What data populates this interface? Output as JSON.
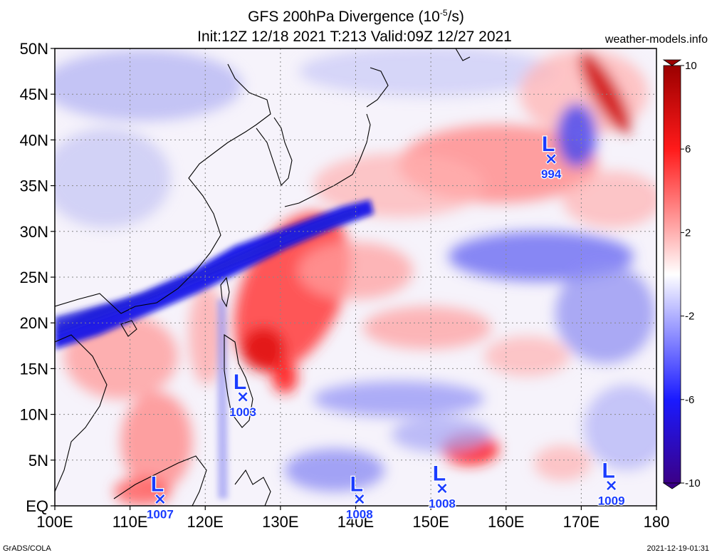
{
  "header": {
    "title_main": "GFS 200hPa Divergence (10",
    "title_exp": "-5",
    "title_unit": "/s)",
    "subtitle": "Init:12Z 12/18 2021 T:213 Valid:09Z 12/27 2021",
    "site": "weather-models.info"
  },
  "map": {
    "lon_range": [
      100,
      180
    ],
    "lat_range": [
      0,
      50
    ],
    "lat_labels": [
      {
        "lat": 50,
        "text": "50N"
      },
      {
        "lat": 45,
        "text": "45N"
      },
      {
        "lat": 40,
        "text": "40N"
      },
      {
        "lat": 35,
        "text": "35N"
      },
      {
        "lat": 30,
        "text": "30N"
      },
      {
        "lat": 25,
        "text": "25N"
      },
      {
        "lat": 20,
        "text": "20N"
      },
      {
        "lat": 15,
        "text": "15N"
      },
      {
        "lat": 10,
        "text": "10N"
      },
      {
        "lat": 5,
        "text": "5N"
      },
      {
        "lat": 0,
        "text": "EQ"
      }
    ],
    "lon_labels": [
      {
        "lon": 100,
        "text": "100E"
      },
      {
        "lon": 110,
        "text": "110E"
      },
      {
        "lon": 120,
        "text": "120E"
      },
      {
        "lon": 130,
        "text": "130E"
      },
      {
        "lon": 140,
        "text": "140E"
      },
      {
        "lon": 150,
        "text": "150E"
      },
      {
        "lon": 160,
        "text": "160E"
      },
      {
        "lon": 170,
        "text": "170E"
      },
      {
        "lon": 180,
        "text": "180"
      }
    ]
  },
  "lows": [
    {
      "lon": 125.0,
      "lat": 12.0,
      "letter": "L",
      "pressure": "1003"
    },
    {
      "lon": 166.0,
      "lat": 38.0,
      "letter": "L",
      "pressure": "994"
    },
    {
      "lon": 114.0,
      "lat": 0.8,
      "letter": "L",
      "pressure": "1007"
    },
    {
      "lon": 140.5,
      "lat": 0.8,
      "letter": "L",
      "pressure": "1008"
    },
    {
      "lon": 151.5,
      "lat": 2.0,
      "letter": "L",
      "pressure": "1008"
    },
    {
      "lon": 174.0,
      "lat": 2.3,
      "letter": "L",
      "pressure": "1009"
    }
  ],
  "colorbar": {
    "range": [
      -10,
      10
    ],
    "ticks": [
      {
        "value": 10,
        "text": "10"
      },
      {
        "value": 6,
        "text": "6"
      },
      {
        "value": 2,
        "text": "2"
      },
      {
        "value": -2,
        "text": "-2"
      },
      {
        "value": -6,
        "text": "-6"
      },
      {
        "value": -10,
        "text": "-10"
      }
    ],
    "colors": {
      "max": "#9b0000",
      "pos": "#ff2a2a",
      "mid": "#ffffff",
      "neg": "#2a2aff",
      "min": "#3b0086"
    }
  },
  "footer": {
    "left": "GrADS/COLA",
    "right": "2021-12-19-01:31"
  }
}
